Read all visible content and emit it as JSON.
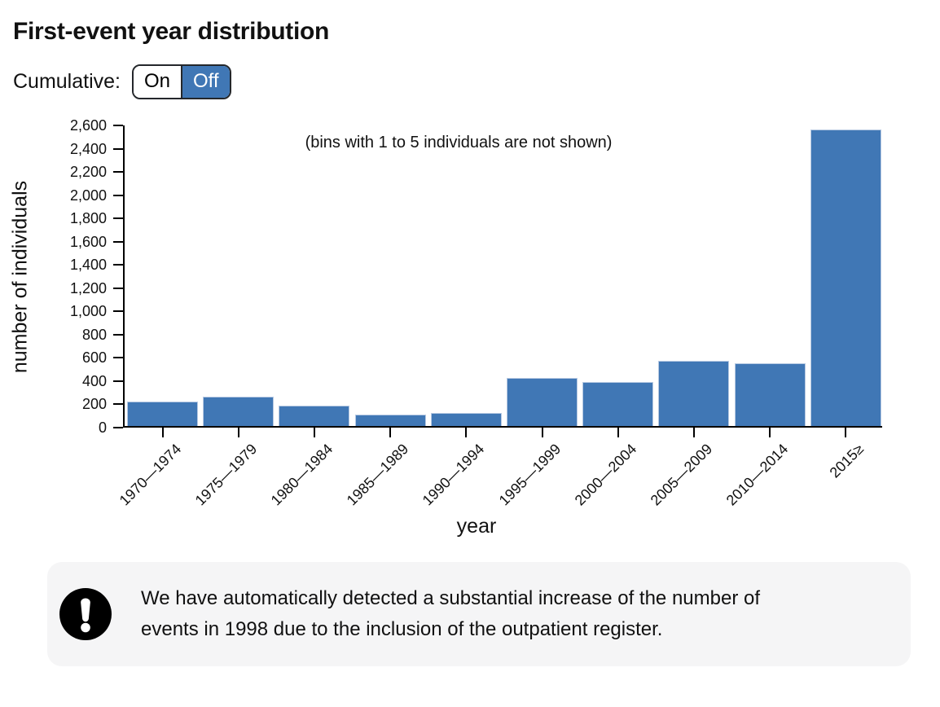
{
  "page": {
    "title": "First-event year distribution"
  },
  "controls": {
    "cumulative_label": "Cumulative:",
    "toggle": {
      "on_label": "On",
      "off_label": "Off",
      "selected": "Off"
    }
  },
  "chart_data": {
    "type": "bar",
    "title": "First-event year distribution",
    "annotation": "(bins with 1 to 5 individuals are not shown)",
    "xlabel": "year",
    "ylabel": "number of individuals",
    "categories": [
      "1970—1974",
      "1975—1979",
      "1980—1984",
      "1985—1989",
      "1990—1994",
      "1995—1999",
      "2000—2004",
      "2005—2009",
      "2010—2014",
      "2015≥"
    ],
    "values": [
      210,
      255,
      175,
      95,
      110,
      410,
      375,
      560,
      540,
      2550
    ],
    "ylim": [
      0,
      2600
    ],
    "ytick_step": 200,
    "grid": false,
    "legend": "none",
    "bar_color": "#4077b5",
    "bar_border_color": "#b7c9e2",
    "axis_color": "#000000"
  },
  "note": {
    "icon": "exclamation-circle-icon",
    "text": "We have automatically detected a substantial increase of the number of events in 1998 due to the inclusion of the outpatient register."
  },
  "colors": {
    "accent": "#4077b5",
    "note_background": "#f5f5f6",
    "toggle_border": "#24272b",
    "text": "#111111"
  }
}
